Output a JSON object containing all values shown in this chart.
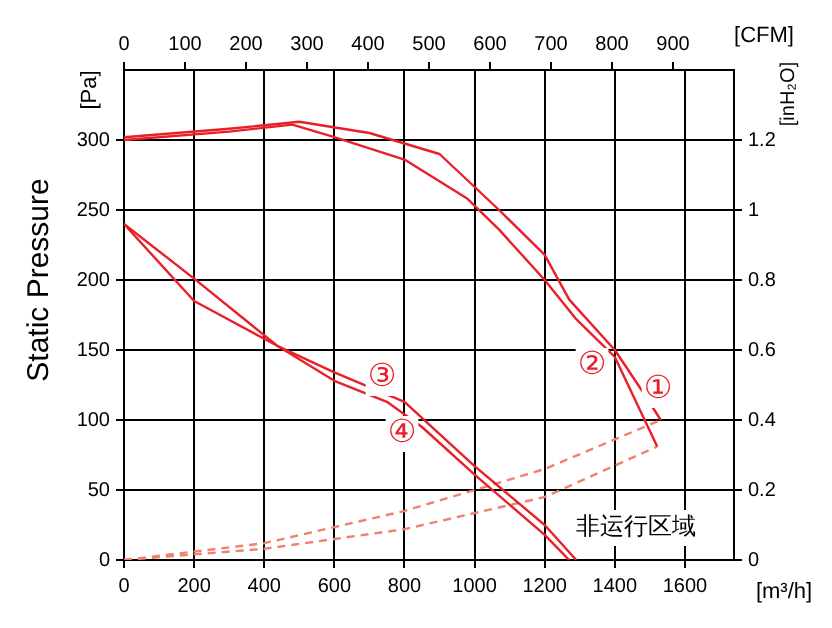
{
  "chart_data": {
    "type": "line",
    "ylabel": "Static Pressure",
    "xlabel": "[m³/h]",
    "x2label": "[CFM]",
    "y2label": "[inH₂O]",
    "xlim": [
      0,
      1740
    ],
    "xticks": [
      0,
      200,
      400,
      600,
      800,
      1000,
      1200,
      1400,
      1600
    ],
    "x2lim": [
      0,
      1000
    ],
    "x2ticks": [
      0,
      100,
      200,
      300,
      400,
      500,
      600,
      700,
      800,
      900
    ],
    "ylim": [
      0,
      350
    ],
    "yticks": [
      0,
      50,
      100,
      150,
      200,
      250,
      300
    ],
    "y2lim": [
      0,
      1.4
    ],
    "y2ticks": [
      0,
      0.2,
      0.4,
      0.6,
      0.8,
      1,
      1.2
    ],
    "grid": true,
    "legend": false,
    "marker": "none",
    "series": [
      {
        "color": "#e8202a",
        "line_style": "solid",
        "x": [
          0,
          300,
          500,
          700,
          900,
          1070,
          1200,
          1270,
          1400,
          1480,
          1531
        ],
        "values": [
          302,
          308,
          313,
          305,
          290,
          250,
          218,
          186,
          150,
          120,
          100
        ]
      },
      {
        "color": "#e8202a",
        "line_style": "solid",
        "x": [
          0,
          300,
          480,
          600,
          800,
          980,
          1070,
          1200,
          1290,
          1400,
          1521
        ],
        "values": [
          300,
          306,
          311,
          302,
          286,
          258,
          236,
          200,
          172,
          145,
          81
        ]
      },
      {
        "color": "#e8202a",
        "line_style": "solid",
        "x": [
          0,
          200,
          437,
          600,
          800,
          1000,
          1200,
          1290
        ],
        "values": [
          240,
          185,
          153,
          134,
          113,
          67,
          25,
          0
        ]
      },
      {
        "color": "#e8202a",
        "line_style": "solid",
        "x": [
          0,
          200,
          437,
          600,
          750,
          850,
          1000,
          1200,
          1270
        ],
        "values": [
          240,
          201,
          153,
          128,
          113,
          95,
          61,
          18,
          0
        ]
      },
      {
        "color": "#f08070",
        "line_style": "dashed",
        "x": [
          0,
          400,
          800,
          1200,
          1531
        ],
        "values": [
          0,
          12,
          35,
          65,
          100
        ]
      },
      {
        "color": "#f08070",
        "line_style": "dashed",
        "x": [
          0,
          400,
          800,
          1200,
          1521
        ],
        "values": [
          0,
          8,
          22,
          45,
          81
        ]
      }
    ],
    "annotations": [
      "①",
      "②",
      "③",
      "④",
      "[Pa]",
      "非运行区域"
    ]
  }
}
